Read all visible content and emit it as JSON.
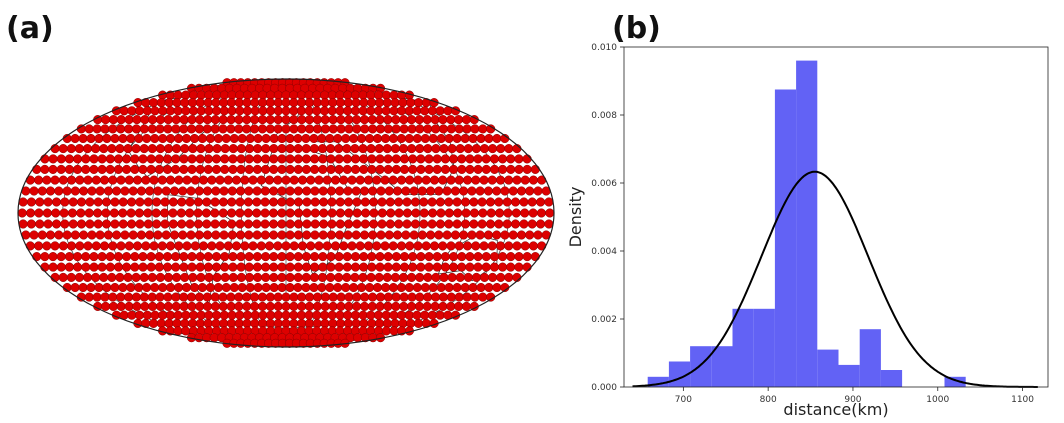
{
  "panels": {
    "a": {
      "label": "(a)"
    },
    "b": {
      "label": "(b)"
    }
  },
  "colors": {
    "marker": "#dd0000",
    "marker_edge": "#8a0000",
    "bar": "#6262f5",
    "curve": "#000000",
    "map_lines": "#222222"
  },
  "chart_data": [
    {
      "type": "scatter",
      "projection": "mollweide",
      "title": "",
      "grid": true,
      "rows": [
        {
          "lat": 84,
          "count": 18
        },
        {
          "lat": 78,
          "count": 26
        },
        {
          "lat": 72,
          "count": 33
        },
        {
          "lat": 66,
          "count": 39
        },
        {
          "lat": 60,
          "count": 45
        },
        {
          "lat": 54,
          "count": 49
        },
        {
          "lat": 48,
          "count": 53
        },
        {
          "lat": 42,
          "count": 56
        },
        {
          "lat": 36,
          "count": 58
        },
        {
          "lat": 30,
          "count": 60
        },
        {
          "lat": 24,
          "count": 62
        },
        {
          "lat": 18,
          "count": 63
        },
        {
          "lat": 12,
          "count": 64
        },
        {
          "lat": 6,
          "count": 64
        },
        {
          "lat": 0,
          "count": 64
        },
        {
          "lat": -6,
          "count": 64
        },
        {
          "lat": -12,
          "count": 64
        },
        {
          "lat": -18,
          "count": 63
        },
        {
          "lat": -24,
          "count": 62
        },
        {
          "lat": -30,
          "count": 60
        },
        {
          "lat": -36,
          "count": 58
        },
        {
          "lat": -42,
          "count": 56
        },
        {
          "lat": -48,
          "count": 53
        },
        {
          "lat": -54,
          "count": 49
        },
        {
          "lat": -60,
          "count": 45
        },
        {
          "lat": -66,
          "count": 39
        },
        {
          "lat": -72,
          "count": 33
        },
        {
          "lat": -78,
          "count": 26
        },
        {
          "lat": -84,
          "count": 18
        }
      ]
    },
    {
      "type": "bar",
      "histogram": true,
      "xlabel": "distance(km)",
      "ylabel": "Density",
      "xlim": [
        630,
        1130
      ],
      "ylim": [
        0,
        0.01
      ],
      "xticks": [
        700,
        800,
        900,
        1000,
        1100
      ],
      "yticks": [
        "0.000",
        "0.002",
        "0.004",
        "0.006",
        "0.008",
        "0.010"
      ],
      "bins": [
        {
          "start": 658,
          "end": 683,
          "density": 0.0003
        },
        {
          "start": 683,
          "end": 708,
          "density": 0.00075
        },
        {
          "start": 708,
          "end": 733,
          "density": 0.0012
        },
        {
          "start": 733,
          "end": 758,
          "density": 0.0012
        },
        {
          "start": 758,
          "end": 783,
          "density": 0.0023
        },
        {
          "start": 783,
          "end": 808,
          "density": 0.0023
        },
        {
          "start": 808,
          "end": 833,
          "density": 0.00875
        },
        {
          "start": 833,
          "end": 858,
          "density": 0.0096
        },
        {
          "start": 858,
          "end": 883,
          "density": 0.0011
        },
        {
          "start": 883,
          "end": 908,
          "density": 0.00065
        },
        {
          "start": 908,
          "end": 933,
          "density": 0.0017
        },
        {
          "start": 933,
          "end": 958,
          "density": 0.0005
        },
        {
          "start": 958,
          "end": 983,
          "density": 0.0
        },
        {
          "start": 983,
          "end": 1008,
          "density": 0.0
        },
        {
          "start": 1008,
          "end": 1033,
          "density": 0.0003
        }
      ],
      "fit_curve": {
        "type": "normal",
        "mean": 855,
        "std": 63,
        "x_range": [
          640,
          1118
        ]
      }
    }
  ]
}
